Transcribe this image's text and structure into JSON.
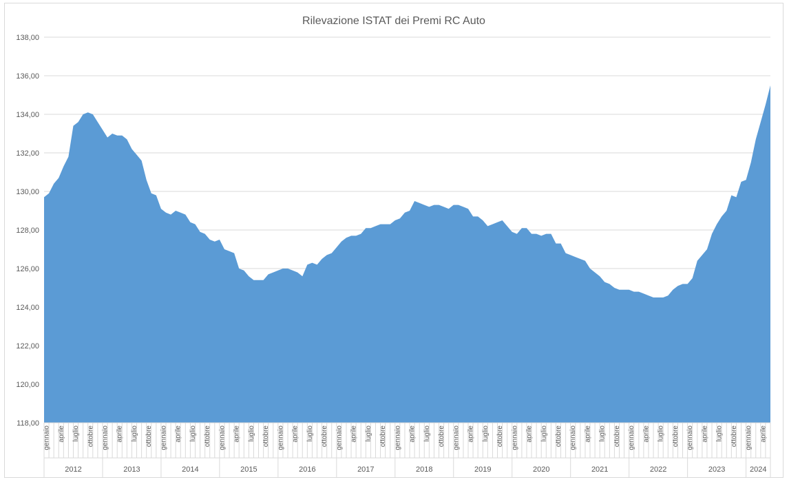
{
  "chart_data": {
    "type": "area",
    "title": "Rilevazione ISTAT dei Premi RC Auto",
    "xlabel": "",
    "ylabel": "",
    "ylim": [
      118,
      138
    ],
    "ytick_step": 2,
    "ytick_labels": [
      "118,00",
      "120,00",
      "122,00",
      "124,00",
      "126,00",
      "128,00",
      "130,00",
      "132,00",
      "134,00",
      "136,00",
      "138,00"
    ],
    "grid": true,
    "legend": "none",
    "color": "#5b9bd5",
    "month_tick_labels": [
      "gennaio",
      "aprile",
      "luglio",
      "ottobre"
    ],
    "years": [
      "2012",
      "2013",
      "2014",
      "2015",
      "2016",
      "2017",
      "2018",
      "2019",
      "2020",
      "2021",
      "2022",
      "2023",
      "2024"
    ],
    "series": [
      {
        "values": [
          129.7,
          129.9,
          130.4,
          130.7,
          131.3,
          131.8,
          133.4,
          133.6,
          134.0,
          134.1,
          134.0,
          133.6,
          133.2,
          132.8,
          133.0,
          132.9,
          132.9,
          132.7,
          132.2,
          131.9,
          131.6,
          130.6,
          129.9,
          129.8,
          129.1,
          128.9,
          128.8,
          129.0,
          128.9,
          128.8,
          128.4,
          128.3,
          127.9,
          127.8,
          127.5,
          127.4,
          127.5,
          127.0,
          126.9,
          126.8,
          126.0,
          125.9,
          125.6,
          125.4,
          125.4,
          125.4,
          125.7,
          125.8,
          125.9,
          126.0,
          126.0,
          125.9,
          125.8,
          125.6,
          126.2,
          126.3,
          126.2,
          126.5,
          126.7,
          126.8,
          127.1,
          127.4,
          127.6,
          127.7,
          127.7,
          127.8,
          128.1,
          128.1,
          128.2,
          128.3,
          128.3,
          128.3,
          128.5,
          128.6,
          128.9,
          129.0,
          129.5,
          129.4,
          129.3,
          129.2,
          129.3,
          129.3,
          129.2,
          129.1,
          129.3,
          129.3,
          129.2,
          129.1,
          128.7,
          128.7,
          128.5,
          128.2,
          128.3,
          128.4,
          128.5,
          128.2,
          127.9,
          127.8,
          128.1,
          128.1,
          127.8,
          127.8,
          127.7,
          127.8,
          127.8,
          127.3,
          127.3,
          126.8,
          126.7,
          126.6,
          126.5,
          126.4,
          126.0,
          125.8,
          125.6,
          125.3,
          125.2,
          125.0,
          124.9,
          124.9,
          124.9,
          124.8,
          124.8,
          124.7,
          124.6,
          124.5,
          124.5,
          124.5,
          124.6,
          124.9,
          125.1,
          125.2,
          125.2,
          125.5,
          126.4,
          126.7,
          127.0,
          127.8,
          128.3,
          128.7,
          129.0,
          129.8,
          129.7,
          130.5,
          130.6,
          131.5,
          132.7,
          133.6,
          134.5,
          135.5
        ]
      }
    ]
  }
}
